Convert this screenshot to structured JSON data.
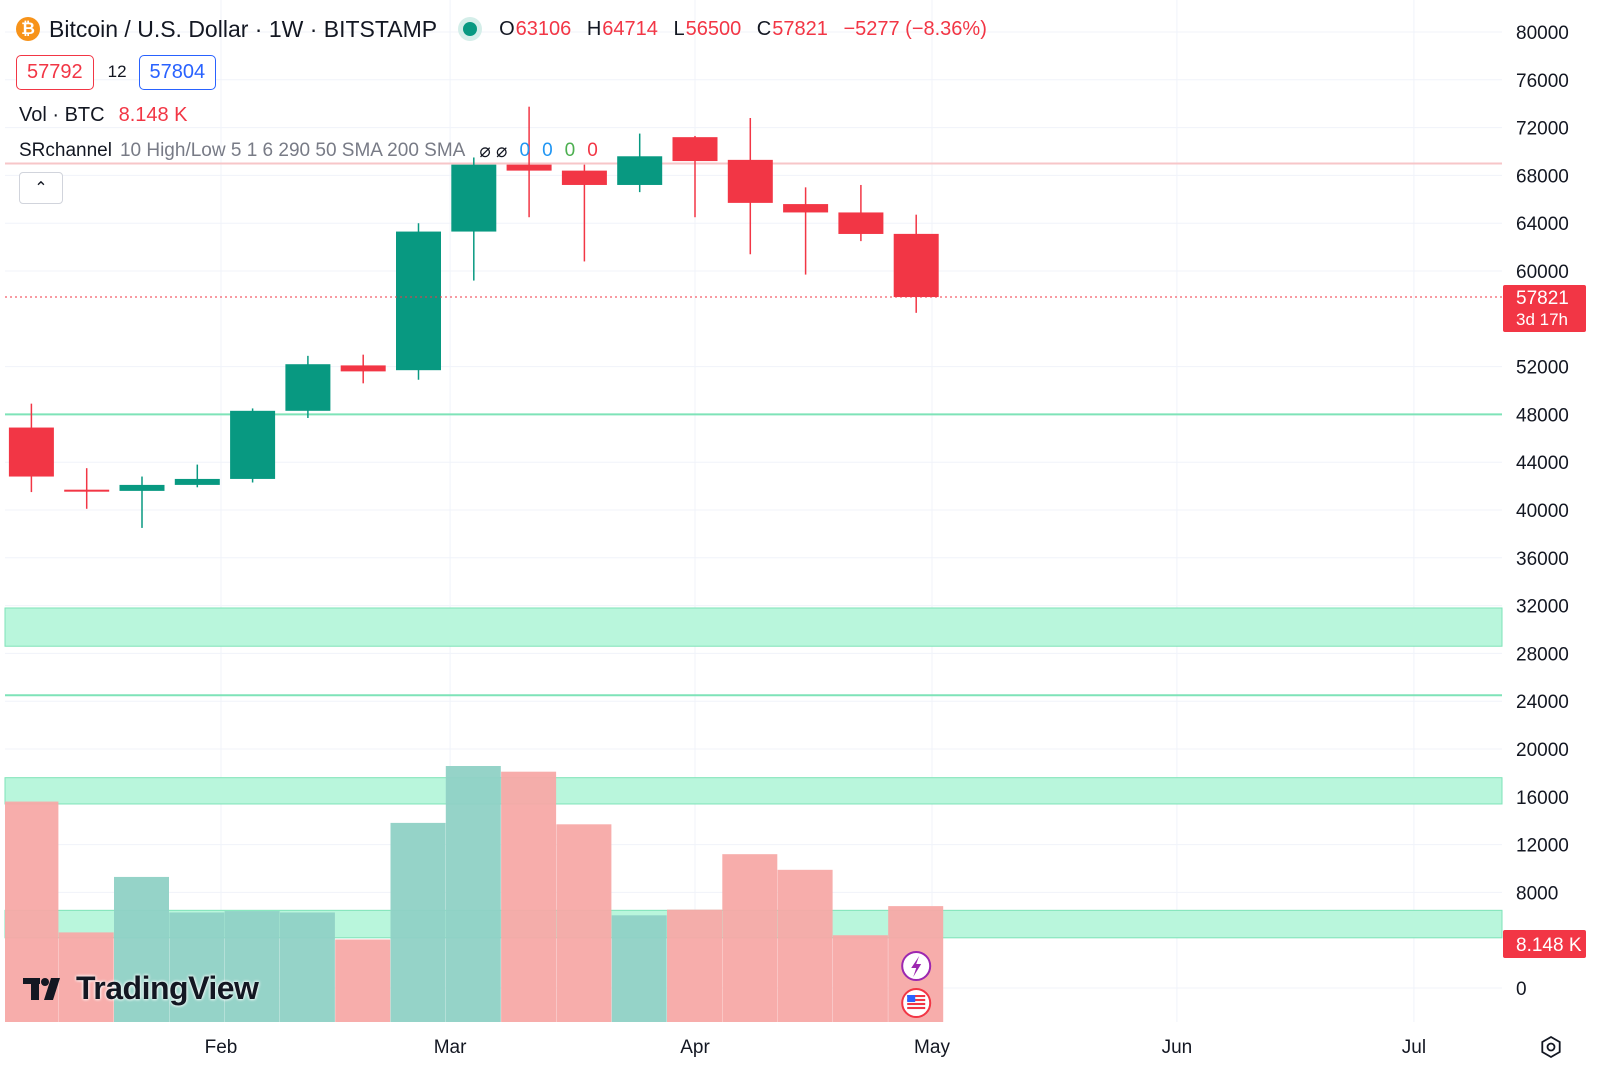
{
  "header": {
    "symbol_icon": "₿",
    "symbol_title": "Bitcoin / U.S. Dollar · 1W · BITSTAMP",
    "ohlc": {
      "o_label": "O",
      "o_value": "63106",
      "h_label": "H",
      "h_value": "64714",
      "l_label": "L",
      "l_value": "56500",
      "c_label": "C",
      "c_value": "57821",
      "change": "−5277 (−8.36%)"
    },
    "bid": "57792",
    "spread": "12",
    "ask": "57804",
    "volume_indicator": {
      "label": "Vol · BTC",
      "value": "8.148 K"
    },
    "sr_indicator": {
      "name": "SRchannel",
      "params": "10 High/Low 5 1 6 290 50 SMA 200 SMA",
      "icons": "⌀ ⌀",
      "values": [
        "0",
        "0",
        "0",
        "0"
      ]
    },
    "collapse_icon": "⌃"
  },
  "colors": {
    "up": "#089981",
    "down": "#f23645",
    "up_volume": "#8fd1c5",
    "down_volume": "#f7a9a7",
    "sr_zone": "#b9f6dc",
    "sr_line": "#7ee3b8",
    "resistance_line": "#f7c6c8",
    "grid": "#f0f3fa"
  },
  "watermark": {
    "text": "TradingView"
  },
  "chart_data": {
    "type": "candlestick",
    "symbol": "Bitcoin / U.S. Dollar",
    "interval": "1W",
    "exchange": "BITSTAMP",
    "price_axis": {
      "ylim": [
        -1000,
        81000
      ],
      "ticks": [
        0,
        8000,
        12000,
        16000,
        20000,
        24000,
        28000,
        32000,
        36000,
        40000,
        44000,
        48000,
        52000,
        60000,
        64000,
        68000,
        72000,
        76000,
        80000
      ],
      "tick_labels": [
        "0",
        "8000",
        "12000",
        "16000",
        "20000",
        "24000",
        "28000",
        "32000",
        "36000",
        "40000",
        "44000",
        "48000",
        "52000",
        "60000",
        "64000",
        "68000",
        "72000",
        "76000",
        "80000"
      ]
    },
    "time_axis": {
      "labels": [
        "Feb",
        "Mar",
        "Apr",
        "May",
        "Jun",
        "Jul"
      ],
      "label_dates": [
        "2024-02-01",
        "2024-03-01",
        "2024-04-01",
        "2024-05-01",
        "2024-06-01",
        "2024-07-01"
      ]
    },
    "candles": [
      {
        "date": "2024-01-08",
        "open": 46900,
        "high": 48900,
        "low": 41500,
        "close": 42800
      },
      {
        "date": "2024-01-15",
        "open": 41700,
        "high": 43500,
        "low": 40100,
        "close": 41600
      },
      {
        "date": "2024-01-22",
        "open": 41600,
        "high": 42800,
        "low": 38500,
        "close": 42100
      },
      {
        "date": "2024-01-29",
        "open": 42100,
        "high": 43800,
        "low": 41900,
        "close": 42600
      },
      {
        "date": "2024-02-05",
        "open": 42600,
        "high": 48500,
        "low": 42300,
        "close": 48300
      },
      {
        "date": "2024-02-12",
        "open": 48300,
        "high": 52900,
        "low": 47700,
        "close": 52200
      },
      {
        "date": "2024-02-19",
        "open": 52100,
        "high": 53000,
        "low": 50600,
        "close": 51600
      },
      {
        "date": "2024-02-26",
        "open": 51700,
        "high": 64000,
        "low": 50900,
        "close": 63300
      },
      {
        "date": "2024-03-04",
        "open": 63300,
        "high": 69500,
        "low": 59200,
        "close": 68900
      },
      {
        "date": "2024-03-11",
        "open": 68900,
        "high": 73750,
        "low": 64500,
        "close": 68400
      },
      {
        "date": "2024-03-18",
        "open": 68400,
        "high": 68900,
        "low": 60800,
        "close": 67200
      },
      {
        "date": "2024-03-25",
        "open": 67200,
        "high": 71500,
        "low": 66600,
        "close": 69600
      },
      {
        "date": "2024-04-01",
        "open": 71200,
        "high": 71300,
        "low": 64500,
        "close": 69200
      },
      {
        "date": "2024-04-08",
        "open": 69300,
        "high": 72800,
        "low": 61400,
        "close": 65700
      },
      {
        "date": "2024-04-15",
        "open": 65600,
        "high": 67000,
        "low": 59700,
        "close": 64900
      },
      {
        "date": "2024-04-22",
        "open": 64900,
        "high": 67200,
        "low": 62500,
        "close": 63100
      },
      {
        "date": "2024-04-29",
        "open": 63106,
        "high": 64714,
        "low": 56500,
        "close": 57821
      }
    ],
    "volume": {
      "name": "Vol · BTC",
      "values": [
        15500,
        6300,
        10200,
        7700,
        7800,
        7700,
        5800,
        14000,
        18000,
        17600,
        13900,
        7500,
        7900,
        11800,
        10700,
        6100,
        8148
      ],
      "current_label": "8.148 K"
    },
    "last_price": {
      "value": 57821,
      "label": "57821",
      "countdown": "3d 17h"
    },
    "sr_channel": {
      "zones": [
        {
          "from": 28600,
          "to": 31800
        },
        {
          "from": 15400,
          "to": 17600
        },
        {
          "from": 4200,
          "to": 6500
        }
      ],
      "support_lines": [
        48000,
        24500
      ],
      "resistance_lines": [
        69000
      ]
    },
    "grid": true
  }
}
